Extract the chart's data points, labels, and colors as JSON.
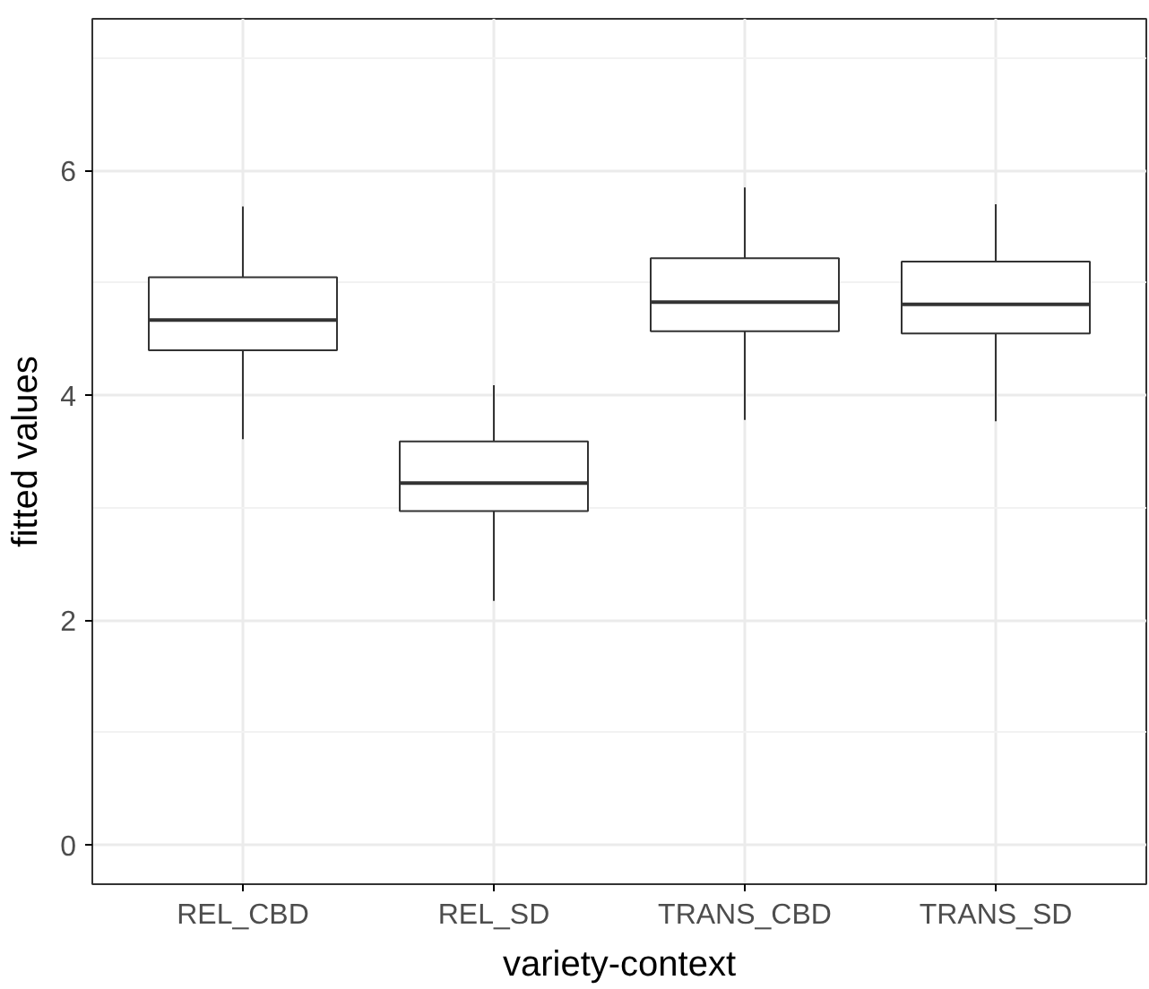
{
  "chart_data": {
    "type": "box",
    "xlabel": "variety-context",
    "ylabel": "fitted values",
    "categories": [
      "REL_CBD",
      "REL_SD",
      "TRANS_CBD",
      "TRANS_SD"
    ],
    "boxes": [
      {
        "low": 3.61,
        "q1": 4.4,
        "median": 4.67,
        "q3": 5.05,
        "high": 5.68
      },
      {
        "low": 2.17,
        "q1": 2.97,
        "median": 3.22,
        "q3": 3.59,
        "high": 4.09
      },
      {
        "low": 3.78,
        "q1": 4.57,
        "median": 4.83,
        "q3": 5.22,
        "high": 5.85
      },
      {
        "low": 3.77,
        "q1": 4.55,
        "median": 4.81,
        "q3": 5.19,
        "high": 5.7
      }
    ],
    "color": "#333333",
    "ylim": [
      -0.35,
      7.35
    ],
    "yticks": [
      0,
      2,
      4,
      6
    ],
    "grid": true
  }
}
